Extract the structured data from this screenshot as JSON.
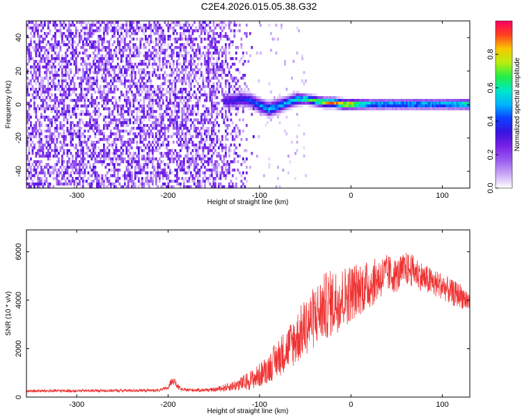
{
  "title": "C2E4.2026.015.05.38.G32",
  "colors": {
    "snr_line": "#ee3333",
    "axis": "#000000",
    "colormap": [
      "#ffffff",
      "#c9a8f6",
      "#9a5cf0",
      "#7a22e6",
      "#3a12e0",
      "#0a40ff",
      "#00b4ff",
      "#00e8c8",
      "#22ee44",
      "#b8ee10",
      "#f8c800",
      "#ff4020",
      "#ff0060"
    ]
  },
  "chart_data": [
    {
      "type": "heatmap",
      "panel": "spectrogram",
      "xlabel": "Height of straight line (km)",
      "ylabel": "Frequency (Hz)",
      "xlim": [
        -355,
        130
      ],
      "ylim": [
        -50,
        50
      ],
      "xticks": [
        -300,
        -200,
        -100,
        0,
        100
      ],
      "xticklabels": [
        "-300",
        "-200",
        "-100",
        "0",
        "100"
      ],
      "yticks": [
        -40,
        -20,
        0,
        20,
        40
      ],
      "yticklabels": [
        "-40",
        "-20",
        "0",
        "20",
        "40"
      ],
      "colorbar": {
        "label": "Normalized spectral amplitude",
        "range": [
          0,
          1
        ],
        "ticks": [
          0.0,
          0.2,
          0.4,
          0.6,
          0.8
        ],
        "ticklabels": [
          "0.0",
          "0.2",
          "0.4",
          "0.6",
          "0.8"
        ]
      },
      "noise_region_x": [
        -355,
        -105
      ],
      "noise_level": 0.3,
      "signal_band": {
        "x": [
          -140,
          -130,
          -120,
          -110,
          -100,
          -90,
          -80,
          -70,
          -60,
          -50,
          -40,
          -30,
          -20,
          -10,
          0,
          20,
          40,
          60,
          80,
          100,
          120,
          130
        ],
        "center_hz": [
          3,
          3,
          4,
          3,
          0,
          -2,
          0,
          2,
          4,
          4,
          3,
          2,
          2,
          1,
          1,
          1,
          1,
          1,
          1,
          1,
          1,
          1
        ],
        "width_hz": [
          6,
          6,
          6,
          6,
          6,
          6,
          6,
          5,
          5,
          4,
          4,
          4,
          4,
          4,
          4,
          4,
          4,
          4,
          4,
          4,
          4,
          4
        ],
        "peak_amplitude": [
          0.35,
          0.4,
          0.4,
          0.45,
          0.5,
          0.6,
          0.55,
          0.6,
          0.65,
          0.7,
          0.8,
          0.95,
          0.95,
          0.95,
          0.95,
          0.6,
          0.6,
          0.6,
          0.6,
          0.6,
          0.7,
          0.75
        ]
      }
    },
    {
      "type": "line",
      "panel": "snr",
      "xlabel": "Height of straight line (km)",
      "ylabel": "SNR (10 * v/v)",
      "xlim": [
        -355,
        130
      ],
      "ylim": [
        0,
        6900
      ],
      "xticks": [
        -300,
        -200,
        -100,
        0,
        100
      ],
      "xticklabels": [
        "-300",
        "-200",
        "-100",
        "0",
        "100"
      ],
      "yticks": [
        0,
        2000,
        4000,
        6000
      ],
      "yticklabels": [
        "0",
        "2000",
        "4000",
        "6000"
      ],
      "series": [
        {
          "x": [
            -355,
            -300,
            -250,
            -210,
            -200,
            -195,
            -190,
            -185,
            -170,
            -150,
            -130,
            -120,
            -110,
            -100,
            -90,
            -80,
            -70,
            -60,
            -50,
            -40,
            -30,
            -20,
            -10,
            0,
            10,
            20,
            30,
            40,
            50,
            60,
            70,
            80,
            90,
            100,
            110,
            120,
            130
          ],
          "values": [
            250,
            260,
            270,
            280,
            380,
            750,
            450,
            300,
            290,
            300,
            450,
            550,
            700,
            900,
            1200,
            1600,
            2000,
            2400,
            2900,
            3300,
            3700,
            3900,
            4100,
            4300,
            4500,
            4600,
            4900,
            5100,
            5000,
            5300,
            5200,
            4900,
            4700,
            4600,
            4300,
            4200,
            3900
          ],
          "noise_amplitude": [
            60,
            60,
            60,
            60,
            80,
            200,
            120,
            70,
            70,
            80,
            200,
            300,
            400,
            500,
            600,
            800,
            900,
            1100,
            1200,
            1300,
            1400,
            1400,
            1300,
            1200,
            1100,
            1000,
            900,
            800,
            700,
            700,
            650,
            600,
            600,
            550,
            550,
            500,
            500
          ]
        }
      ]
    }
  ]
}
